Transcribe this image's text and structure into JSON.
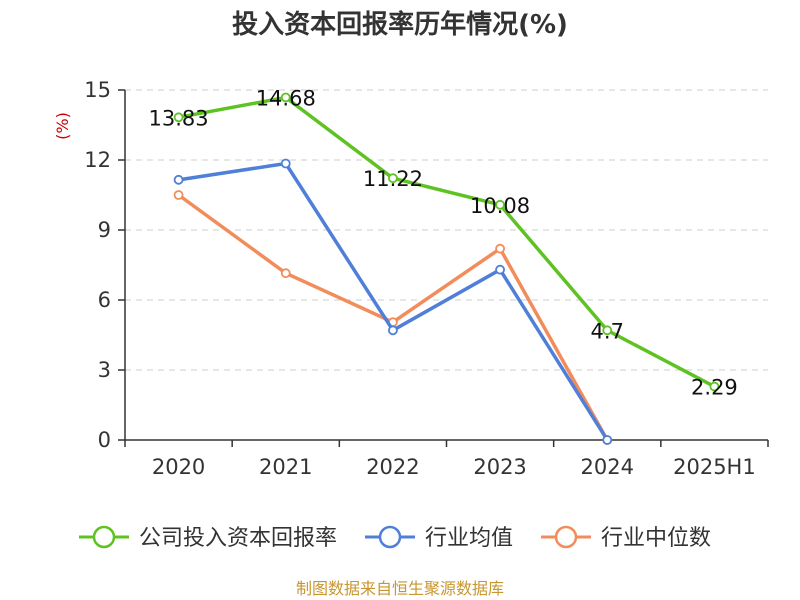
{
  "chart_data": {
    "type": "line",
    "title": "投入资本回报率历年情况(%)",
    "ylabel": "(%)",
    "categories": [
      "2020",
      "2021",
      "2022",
      "2023",
      "2024",
      "2025H1"
    ],
    "ylim": [
      0,
      15
    ],
    "yticks": [
      0,
      3,
      6,
      9,
      12,
      15
    ],
    "grid": true,
    "legend_position": "bottom",
    "series": [
      {
        "name": "公司投入资本回报率",
        "color": "#5ec322",
        "values": [
          13.83,
          14.68,
          11.22,
          10.08,
          4.7,
          2.29
        ],
        "labels": [
          "13.83",
          "14.68",
          "11.22",
          "10.08",
          "4.7",
          "2.29"
        ]
      },
      {
        "name": "行业均值",
        "color": "#4f7fd8",
        "values": [
          11.15,
          11.85,
          4.7,
          7.3,
          0,
          null
        ]
      },
      {
        "name": "行业中位数",
        "color": "#f28c5a",
        "values": [
          10.5,
          7.15,
          5.05,
          8.2,
          0,
          null
        ]
      }
    ]
  },
  "footer": {
    "source": "制图数据来自恒生聚源数据库"
  }
}
